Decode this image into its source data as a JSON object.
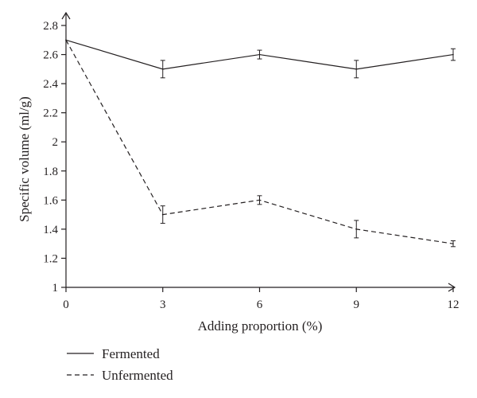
{
  "chart_data": {
    "type": "line",
    "title": "",
    "xlabel": "Adding proportion (%)",
    "ylabel": "Specific volume (ml/g)",
    "x": [
      0,
      3,
      6,
      9,
      12
    ],
    "x_ticks": [
      "0",
      "3",
      "6",
      "9",
      "12"
    ],
    "y_ticks": [
      "1",
      "1.2",
      "1.4",
      "1.6",
      "1.8",
      "2",
      "2.2",
      "2.4",
      "2.6",
      "2.8"
    ],
    "xlim": [
      0,
      12
    ],
    "ylim": [
      1,
      2.8
    ],
    "grid": false,
    "legend_position": "bottom-left",
    "series": [
      {
        "name": "Fermented",
        "style": "solid",
        "values": [
          2.7,
          2.5,
          2.6,
          2.5,
          2.6
        ],
        "errors": [
          0,
          0.06,
          0.03,
          0.06,
          0.04
        ]
      },
      {
        "name": "Unfermented",
        "style": "dashed",
        "values": [
          2.7,
          1.5,
          1.6,
          1.4,
          1.3
        ],
        "errors": [
          0,
          0.06,
          0.03,
          0.06,
          0.02
        ]
      }
    ],
    "line_color": "#231f20"
  }
}
